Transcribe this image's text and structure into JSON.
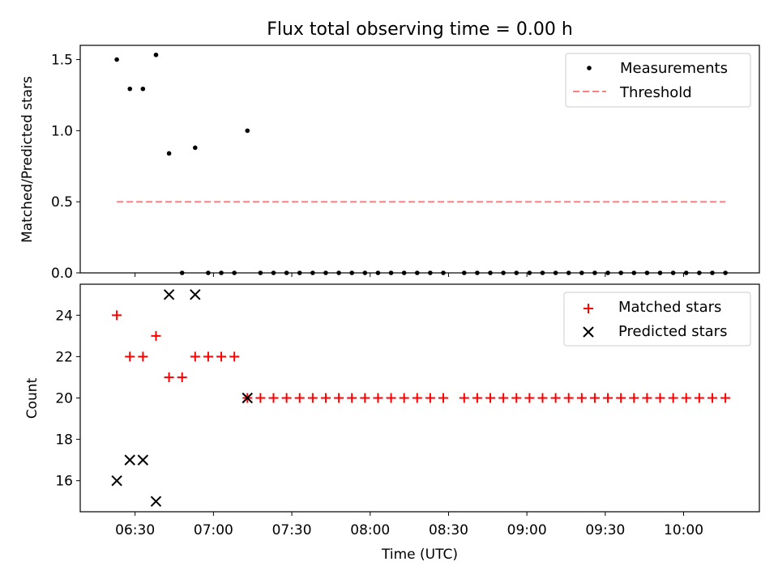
{
  "chart_data": [
    {
      "type": "scatter",
      "title": "Flux total observing time = 0.00 h",
      "xlabel": "",
      "ylabel": "Matched/Predicted stars",
      "ylim": [
        0,
        1.6
      ],
      "yticks": [
        "0.0",
        "0.5",
        "1.0",
        "1.5"
      ],
      "grid": false,
      "legend_position": "upper right",
      "legend": [
        "Measurements",
        "Threshold"
      ],
      "series": [
        {
          "name": "Measurements",
          "marker": "dot",
          "color": "#000000",
          "points": [
            [
              "06:23",
              1.5
            ],
            [
              "06:28",
              1.294
            ],
            [
              "06:33",
              1.294
            ],
            [
              "06:38",
              1.533
            ],
            [
              "06:43",
              0.84
            ],
            [
              "06:48",
              0.0
            ],
            [
              "06:53",
              0.88
            ],
            [
              "06:58",
              0.0
            ],
            [
              "07:03",
              0.0
            ],
            [
              "07:08",
              0.0
            ],
            [
              "07:13",
              1.0
            ],
            [
              "07:18",
              0.0
            ],
            [
              "07:23",
              0.0
            ],
            [
              "07:28",
              0.0
            ],
            [
              "07:33",
              0.0
            ],
            [
              "07:38",
              0.0
            ],
            [
              "07:43",
              0.0
            ],
            [
              "07:48",
              0.0
            ],
            [
              "07:53",
              0.0
            ],
            [
              "07:58",
              0.0
            ],
            [
              "08:03",
              0.0
            ],
            [
              "08:08",
              0.0
            ],
            [
              "08:13",
              0.0
            ],
            [
              "08:18",
              0.0
            ],
            [
              "08:23",
              0.0
            ],
            [
              "08:28",
              0.0
            ],
            [
              "08:36",
              0.0
            ],
            [
              "08:41",
              0.0
            ],
            [
              "08:46",
              0.0
            ],
            [
              "08:51",
              0.0
            ],
            [
              "08:56",
              0.0
            ],
            [
              "09:01",
              0.0
            ],
            [
              "09:06",
              0.0
            ],
            [
              "09:11",
              0.0
            ],
            [
              "09:16",
              0.0
            ],
            [
              "09:21",
              0.0
            ],
            [
              "09:26",
              0.0
            ],
            [
              "09:31",
              0.0
            ],
            [
              "09:36",
              0.0
            ],
            [
              "09:41",
              0.0
            ],
            [
              "09:46",
              0.0
            ],
            [
              "09:51",
              0.0
            ],
            [
              "09:56",
              0.0
            ],
            [
              "10:01",
              0.0
            ],
            [
              "10:06",
              0.0
            ],
            [
              "10:11",
              0.0
            ],
            [
              "10:16",
              0.0
            ]
          ]
        },
        {
          "name": "Threshold",
          "style": "dashed-line",
          "color": "#ff7f7f",
          "points": [
            [
              "06:23",
              0.5
            ],
            [
              "10:16",
              0.5
            ]
          ]
        }
      ]
    },
    {
      "type": "scatter",
      "title": "",
      "xlabel": "Time (UTC)",
      "ylabel": "Count",
      "xlim": [
        "06:09",
        "10:29"
      ],
      "ylim": [
        14.5,
        25.5
      ],
      "yticks": [
        "16",
        "18",
        "20",
        "22",
        "24"
      ],
      "xticks": [
        "06:30",
        "07:00",
        "07:30",
        "08:00",
        "08:30",
        "09:00",
        "09:30",
        "10:00"
      ],
      "grid": false,
      "legend_position": "upper right",
      "legend": [
        "Matched stars",
        "Predicted stars"
      ],
      "series": [
        {
          "name": "Matched stars",
          "marker": "plus",
          "color": "#ff0000",
          "points": [
            [
              "06:23",
              24
            ],
            [
              "06:28",
              22
            ],
            [
              "06:33",
              22
            ],
            [
              "06:38",
              23
            ],
            [
              "06:43",
              21
            ],
            [
              "06:48",
              21
            ],
            [
              "06:53",
              22
            ],
            [
              "06:58",
              22
            ],
            [
              "07:03",
              22
            ],
            [
              "07:08",
              22
            ],
            [
              "07:13",
              20
            ],
            [
              "07:18",
              20
            ],
            [
              "07:23",
              20
            ],
            [
              "07:28",
              20
            ],
            [
              "07:33",
              20
            ],
            [
              "07:38",
              20
            ],
            [
              "07:43",
              20
            ],
            [
              "07:48",
              20
            ],
            [
              "07:53",
              20
            ],
            [
              "07:58",
              20
            ],
            [
              "08:03",
              20
            ],
            [
              "08:08",
              20
            ],
            [
              "08:13",
              20
            ],
            [
              "08:18",
              20
            ],
            [
              "08:23",
              20
            ],
            [
              "08:28",
              20
            ],
            [
              "08:36",
              20
            ],
            [
              "08:41",
              20
            ],
            [
              "08:46",
              20
            ],
            [
              "08:51",
              20
            ],
            [
              "08:56",
              20
            ],
            [
              "09:01",
              20
            ],
            [
              "09:06",
              20
            ],
            [
              "09:11",
              20
            ],
            [
              "09:16",
              20
            ],
            [
              "09:21",
              20
            ],
            [
              "09:26",
              20
            ],
            [
              "09:31",
              20
            ],
            [
              "09:36",
              20
            ],
            [
              "09:41",
              20
            ],
            [
              "09:46",
              20
            ],
            [
              "09:51",
              20
            ],
            [
              "09:56",
              20
            ],
            [
              "10:01",
              20
            ],
            [
              "10:06",
              20
            ],
            [
              "10:11",
              20
            ],
            [
              "10:16",
              20
            ]
          ]
        },
        {
          "name": "Predicted stars",
          "marker": "x",
          "color": "#000000",
          "points": [
            [
              "06:23",
              16
            ],
            [
              "06:28",
              17
            ],
            [
              "06:33",
              17
            ],
            [
              "06:38",
              15
            ],
            [
              "06:43",
              25
            ],
            [
              "06:53",
              25
            ],
            [
              "07:13",
              20
            ]
          ]
        }
      ]
    }
  ]
}
